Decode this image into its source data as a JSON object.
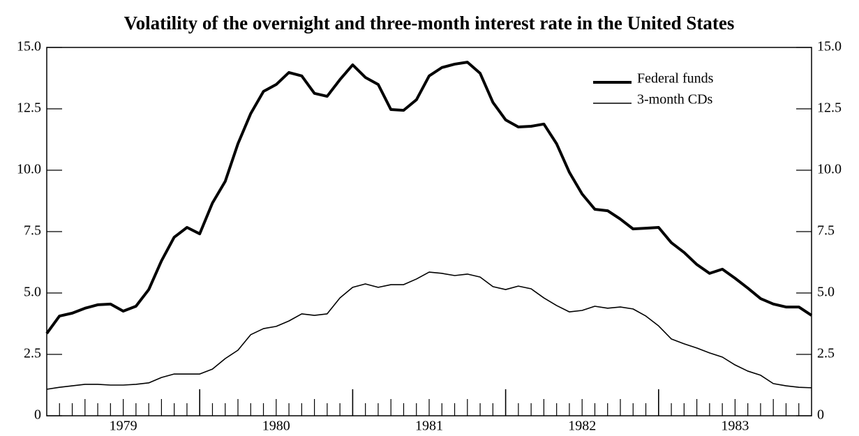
{
  "chart_data": {
    "type": "line",
    "title": "Volatility of the overnight and three-month interest rate in the United States",
    "x": [
      1979.0,
      1979.083,
      1979.167,
      1979.25,
      1979.333,
      1979.417,
      1979.5,
      1979.583,
      1979.667,
      1979.75,
      1979.833,
      1979.917,
      1980.0,
      1980.083,
      1980.167,
      1980.25,
      1980.333,
      1980.417,
      1980.5,
      1980.583,
      1980.667,
      1980.75,
      1980.833,
      1980.917,
      1981.0,
      1981.083,
      1981.167,
      1981.25,
      1981.333,
      1981.417,
      1981.5,
      1981.583,
      1981.667,
      1981.75,
      1981.833,
      1981.917,
      1982.0,
      1982.083,
      1982.167,
      1982.25,
      1982.333,
      1982.417,
      1982.5,
      1982.583,
      1982.667,
      1982.75,
      1982.833,
      1982.917,
      1983.0,
      1983.083,
      1983.167,
      1983.25,
      1983.333,
      1983.417,
      1983.5,
      1983.583,
      1983.667,
      1983.75,
      1983.833,
      1983.917,
      1984.0
    ],
    "series": [
      {
        "name": "Federal funds",
        "color": "#000000",
        "width": 4,
        "values": [
          3.35,
          4.06,
          4.18,
          4.38,
          4.52,
          4.55,
          4.26,
          4.46,
          5.14,
          6.31,
          7.27,
          7.67,
          7.41,
          8.66,
          9.55,
          11.08,
          12.3,
          13.21,
          13.49,
          13.98,
          13.84,
          13.13,
          13.01,
          13.69,
          14.29,
          13.78,
          13.49,
          12.47,
          12.44,
          12.87,
          13.84,
          14.18,
          14.32,
          14.4,
          13.95,
          12.76,
          12.05,
          11.76,
          11.79,
          11.88,
          11.08,
          9.91,
          9.03,
          8.41,
          8.35,
          8.01,
          7.61,
          7.64,
          7.67,
          7.05,
          6.65,
          6.16,
          5.8,
          5.97,
          5.6,
          5.2,
          4.77,
          4.55,
          4.43,
          4.43,
          4.09
        ]
      },
      {
        "name": "3-month CDs",
        "color": "#000000",
        "width": 1.6,
        "values": [
          1.08,
          1.16,
          1.22,
          1.28,
          1.28,
          1.25,
          1.25,
          1.28,
          1.34,
          1.56,
          1.7,
          1.7,
          1.7,
          1.9,
          2.33,
          2.67,
          3.3,
          3.55,
          3.64,
          3.86,
          4.15,
          4.09,
          4.15,
          4.8,
          5.23,
          5.37,
          5.23,
          5.34,
          5.34,
          5.57,
          5.85,
          5.8,
          5.71,
          5.77,
          5.65,
          5.26,
          5.14,
          5.28,
          5.17,
          4.8,
          4.49,
          4.23,
          4.29,
          4.46,
          4.38,
          4.43,
          4.35,
          4.06,
          3.66,
          3.13,
          2.93,
          2.76,
          2.56,
          2.39,
          2.07,
          1.82,
          1.65,
          1.31,
          1.22,
          1.16,
          1.14
        ]
      }
    ],
    "xlim": [
      1979,
      1984
    ],
    "xticks": [
      {
        "value": 1979.5,
        "label": "1979"
      },
      {
        "value": 1980.5,
        "label": "1980"
      },
      {
        "value": 1981.5,
        "label": "1981"
      },
      {
        "value": 1982.5,
        "label": "1982"
      },
      {
        "value": 1983.5,
        "label": "1983"
      }
    ],
    "ylim": [
      0,
      15
    ],
    "yticks": [
      0,
      2.5,
      {
        "value": 5,
        "label": "5.0"
      },
      7.5,
      {
        "value": 10,
        "label": "10.0"
      },
      12.5,
      {
        "value": 15,
        "label": "15.0"
      }
    ],
    "legend": "upper right"
  }
}
